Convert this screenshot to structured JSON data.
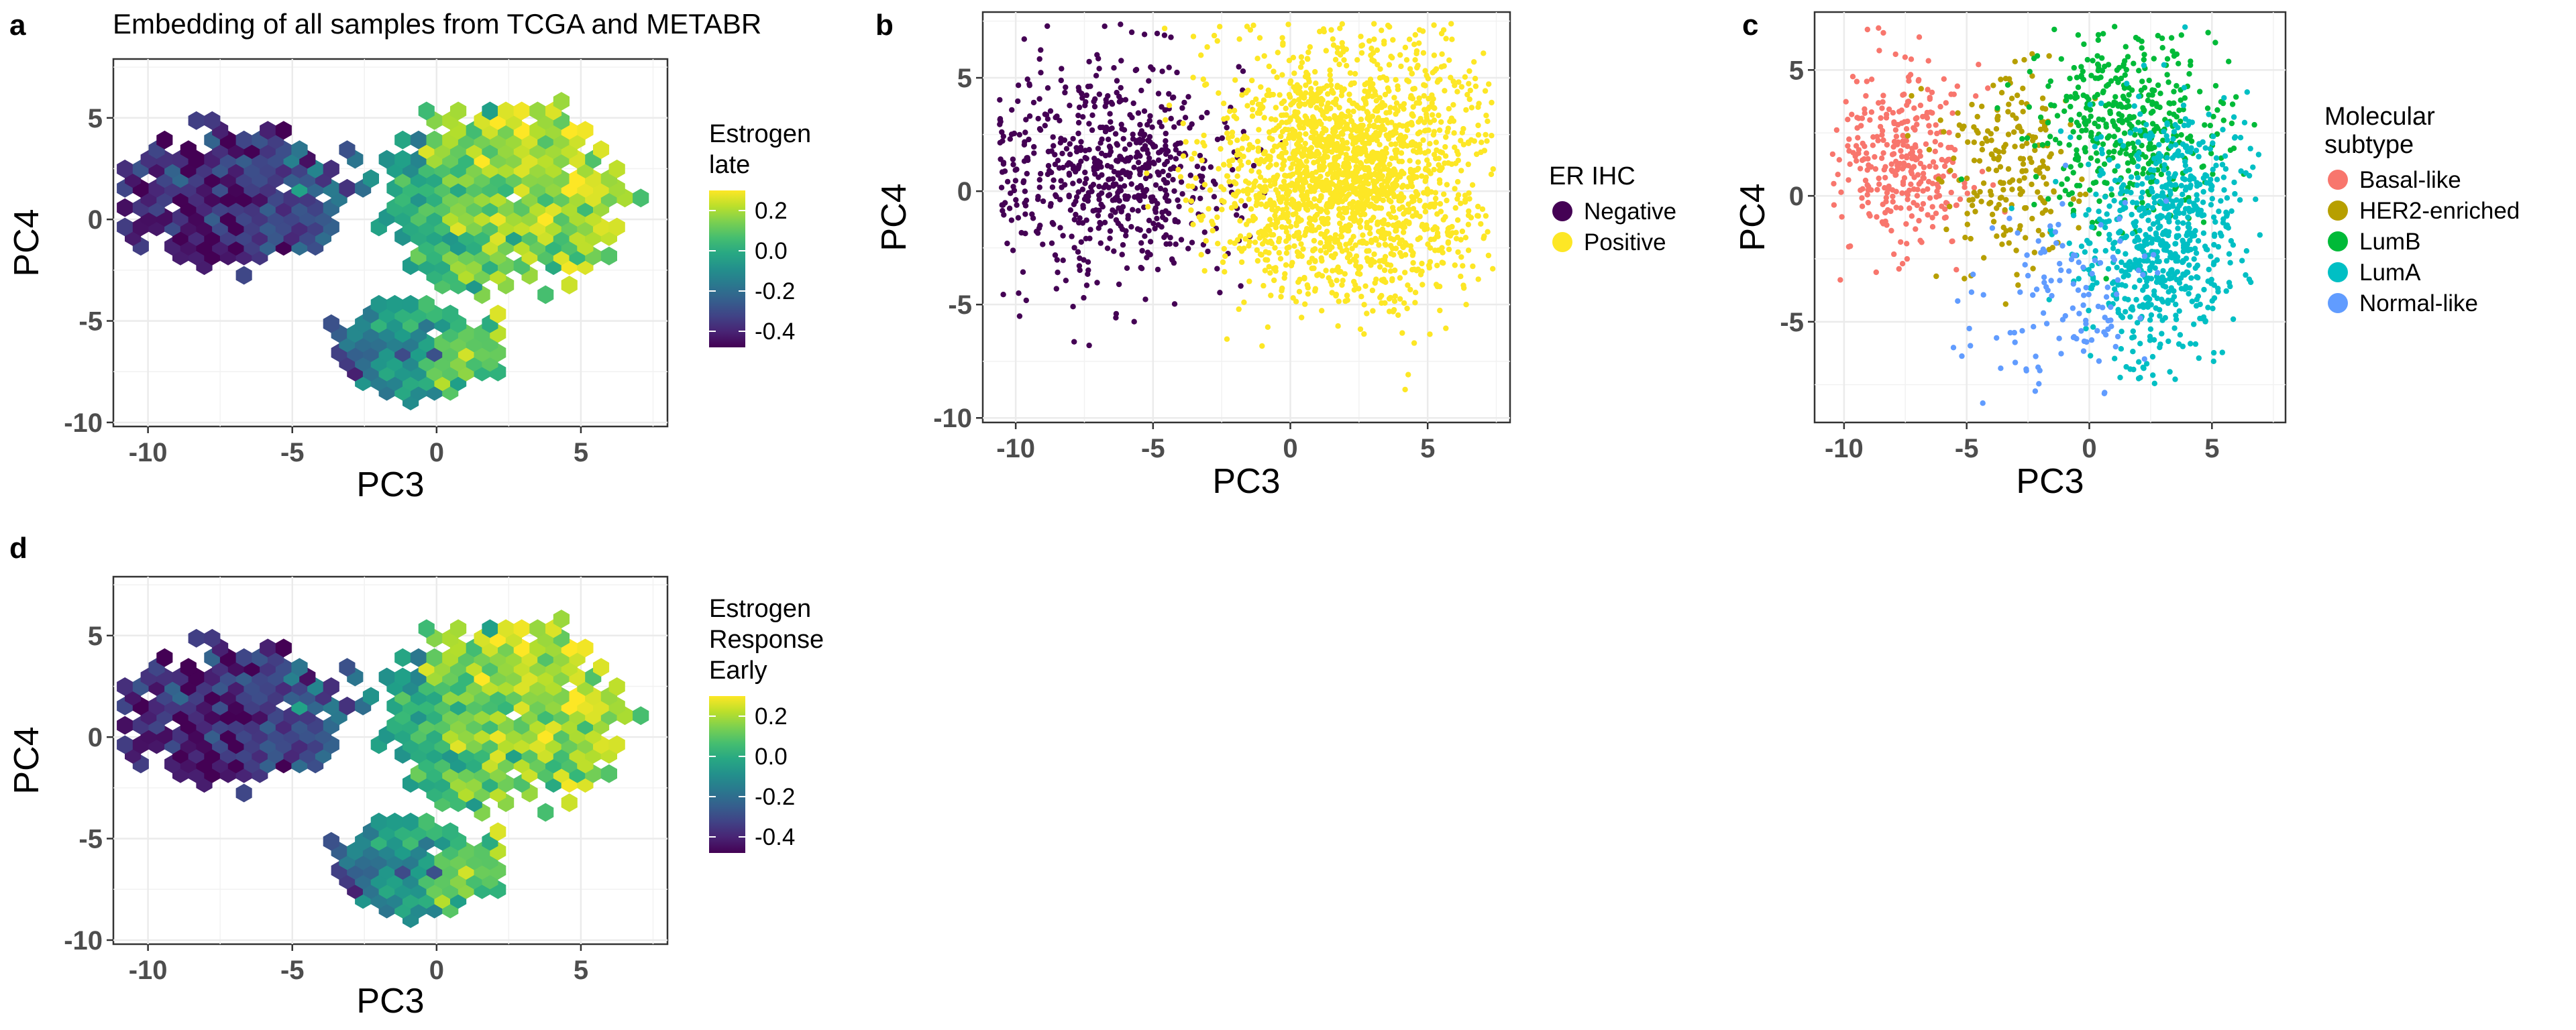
{
  "figure_title": "Embedding of all samples from TCGA and METABR",
  "chart_data": [
    {
      "panel": "a",
      "type": "heatmap",
      "title": "Embedding of all samples from TCGA and METABR",
      "xlabel": "PC3",
      "ylabel": "PC4",
      "xlim": [
        -11.2,
        8.0
      ],
      "ylim": [
        -10.2,
        7.9
      ],
      "xticks": [
        -10,
        -5,
        0,
        5
      ],
      "yticks": [
        -10,
        -5,
        0,
        5
      ],
      "grid": true,
      "legend_title": "Estrogen\nlate",
      "colorscale": "viridis",
      "color_range": [
        -0.48,
        0.3
      ],
      "colorbar_ticks": [
        0.2,
        0.0,
        -0.2,
        -0.4
      ],
      "colorbar_labels": [
        "0.2",
        "0.0",
        "-0.2",
        "-0.4"
      ],
      "legend_position": "right",
      "note": "hexbin of mean pathway score over PC3/PC4 embedding; left cluster around (-7.5, 1) low, right cluster around (3, 1.5) high"
    },
    {
      "panel": "b",
      "type": "scatter",
      "xlabel": "PC3",
      "ylabel": "PC4",
      "xlim": [
        -11.2,
        8.0
      ],
      "ylim": [
        -10.2,
        7.9
      ],
      "xticks": [
        -10,
        -5,
        0,
        5
      ],
      "yticks": [
        -10,
        -5,
        0,
        5
      ],
      "grid": true,
      "legend_title": "ER IHC",
      "legend_position": "right",
      "series": [
        {
          "name": "Negative",
          "color": "#440154",
          "center": [
            -6.5,
            0.7
          ],
          "spread": [
            2.2,
            2.3
          ],
          "n": 650
        },
        {
          "name": "Positive",
          "color": "#FDE725",
          "center": [
            2.0,
            0.8
          ],
          "spread": [
            2.4,
            2.8
          ],
          "n": 2000
        }
      ]
    },
    {
      "panel": "c",
      "type": "scatter",
      "xlabel": "PC3",
      "ylabel": "PC4",
      "xlim": [
        -11.2,
        8.0
      ],
      "ylim": [
        -9.0,
        7.3
      ],
      "xticks": [
        -10,
        -5,
        0,
        5
      ],
      "yticks": [
        -5,
        0,
        5
      ],
      "grid": true,
      "legend_title": "Molecular\nsubtype",
      "legend_position": "right",
      "series": [
        {
          "name": "Basal-like",
          "color": "#F8766D",
          "center": [
            -7.5,
            1.5
          ],
          "spread": [
            1.4,
            1.8
          ],
          "n": 320
        },
        {
          "name": "HER2-enriched",
          "color": "#B79F00",
          "center": [
            -3.3,
            1.2
          ],
          "spread": [
            1.4,
            1.9
          ],
          "n": 210
        },
        {
          "name": "LumB",
          "color": "#00BA38",
          "center": [
            1.5,
            2.8
          ],
          "spread": [
            1.8,
            1.9
          ],
          "n": 420
        },
        {
          "name": "LumA",
          "color": "#00BFC4",
          "center": [
            3.0,
            -1.5
          ],
          "spread": [
            1.7,
            2.5
          ],
          "n": 680
        },
        {
          "name": "Normal-like",
          "color": "#619CFF",
          "center": [
            -1.2,
            -4.2
          ],
          "spread": [
            2.0,
            1.8
          ],
          "n": 120
        }
      ]
    },
    {
      "panel": "d",
      "type": "heatmap",
      "xlabel": "PC3",
      "ylabel": "PC4",
      "xlim": [
        -11.2,
        8.0
      ],
      "ylim": [
        -10.2,
        7.9
      ],
      "xticks": [
        -10,
        -5,
        0,
        5
      ],
      "yticks": [
        -10,
        -5,
        0,
        5
      ],
      "grid": true,
      "legend_title": "Estrogen\nResponse\nEarly",
      "colorscale": "viridis",
      "color_range": [
        -0.48,
        0.3
      ],
      "colorbar_ticks": [
        0.2,
        0.0,
        -0.2,
        -0.4
      ],
      "colorbar_labels": [
        "0.2",
        "0.0",
        "-0.2",
        "-0.4"
      ],
      "legend_position": "right"
    }
  ]
}
